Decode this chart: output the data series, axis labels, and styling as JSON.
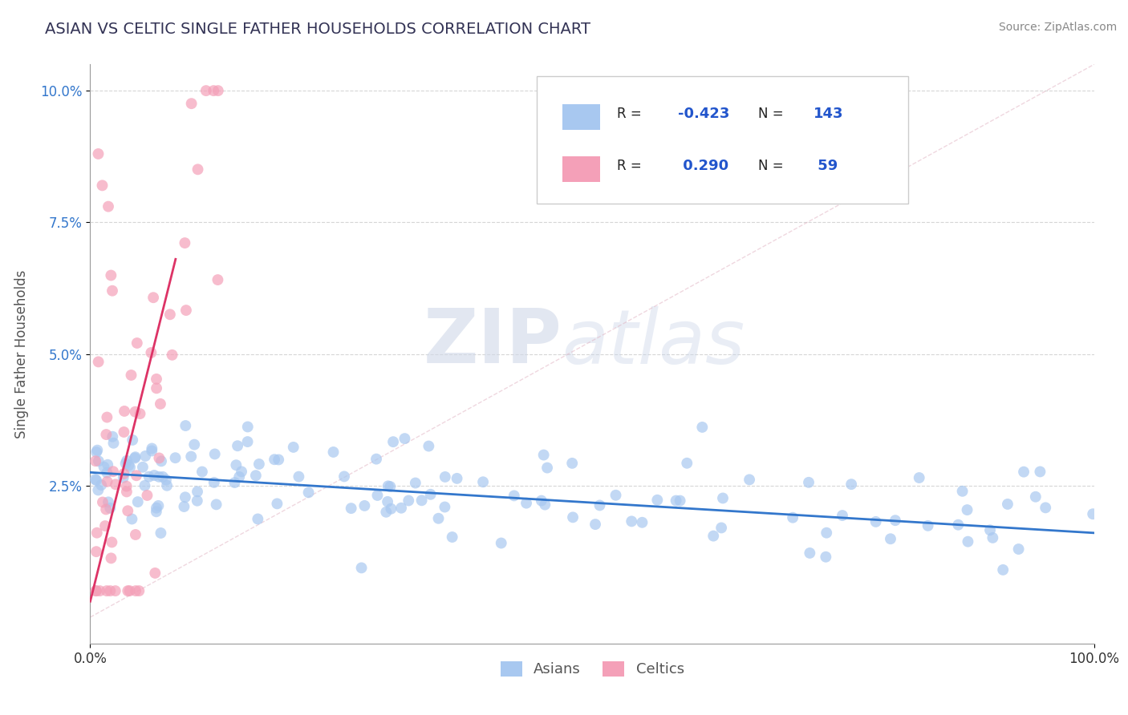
{
  "title": "ASIAN VS CELTIC SINGLE FATHER HOUSEHOLDS CORRELATION CHART",
  "source": "Source: ZipAtlas.com",
  "ylabel": "Single Father Households",
  "watermark_bold": "ZIP",
  "watermark_light": "atlas",
  "xlim": [
    0.0,
    1.0
  ],
  "ylim": [
    -0.005,
    0.105
  ],
  "xtick_labels": [
    "0.0%",
    "100.0%"
  ],
  "ytick_labels": [
    "2.5%",
    "5.0%",
    "7.5%",
    "10.0%"
  ],
  "ytick_positions": [
    0.025,
    0.05,
    0.075,
    0.1
  ],
  "asian_R": -0.423,
  "asian_N": 143,
  "celtic_R": 0.29,
  "celtic_N": 59,
  "asian_color": "#a8c8f0",
  "celtic_color": "#f4a0b8",
  "asian_line_color": "#3377cc",
  "celtic_line_color": "#dd3366",
  "diag_line_color": "#e0b0c0",
  "title_color": "#333355",
  "legend_text_color": "#2255cc",
  "source_color": "#888888",
  "background_color": "#ffffff",
  "grid_color": "#cccccc",
  "ytick_color": "#3377cc",
  "xtick_color": "#333333"
}
